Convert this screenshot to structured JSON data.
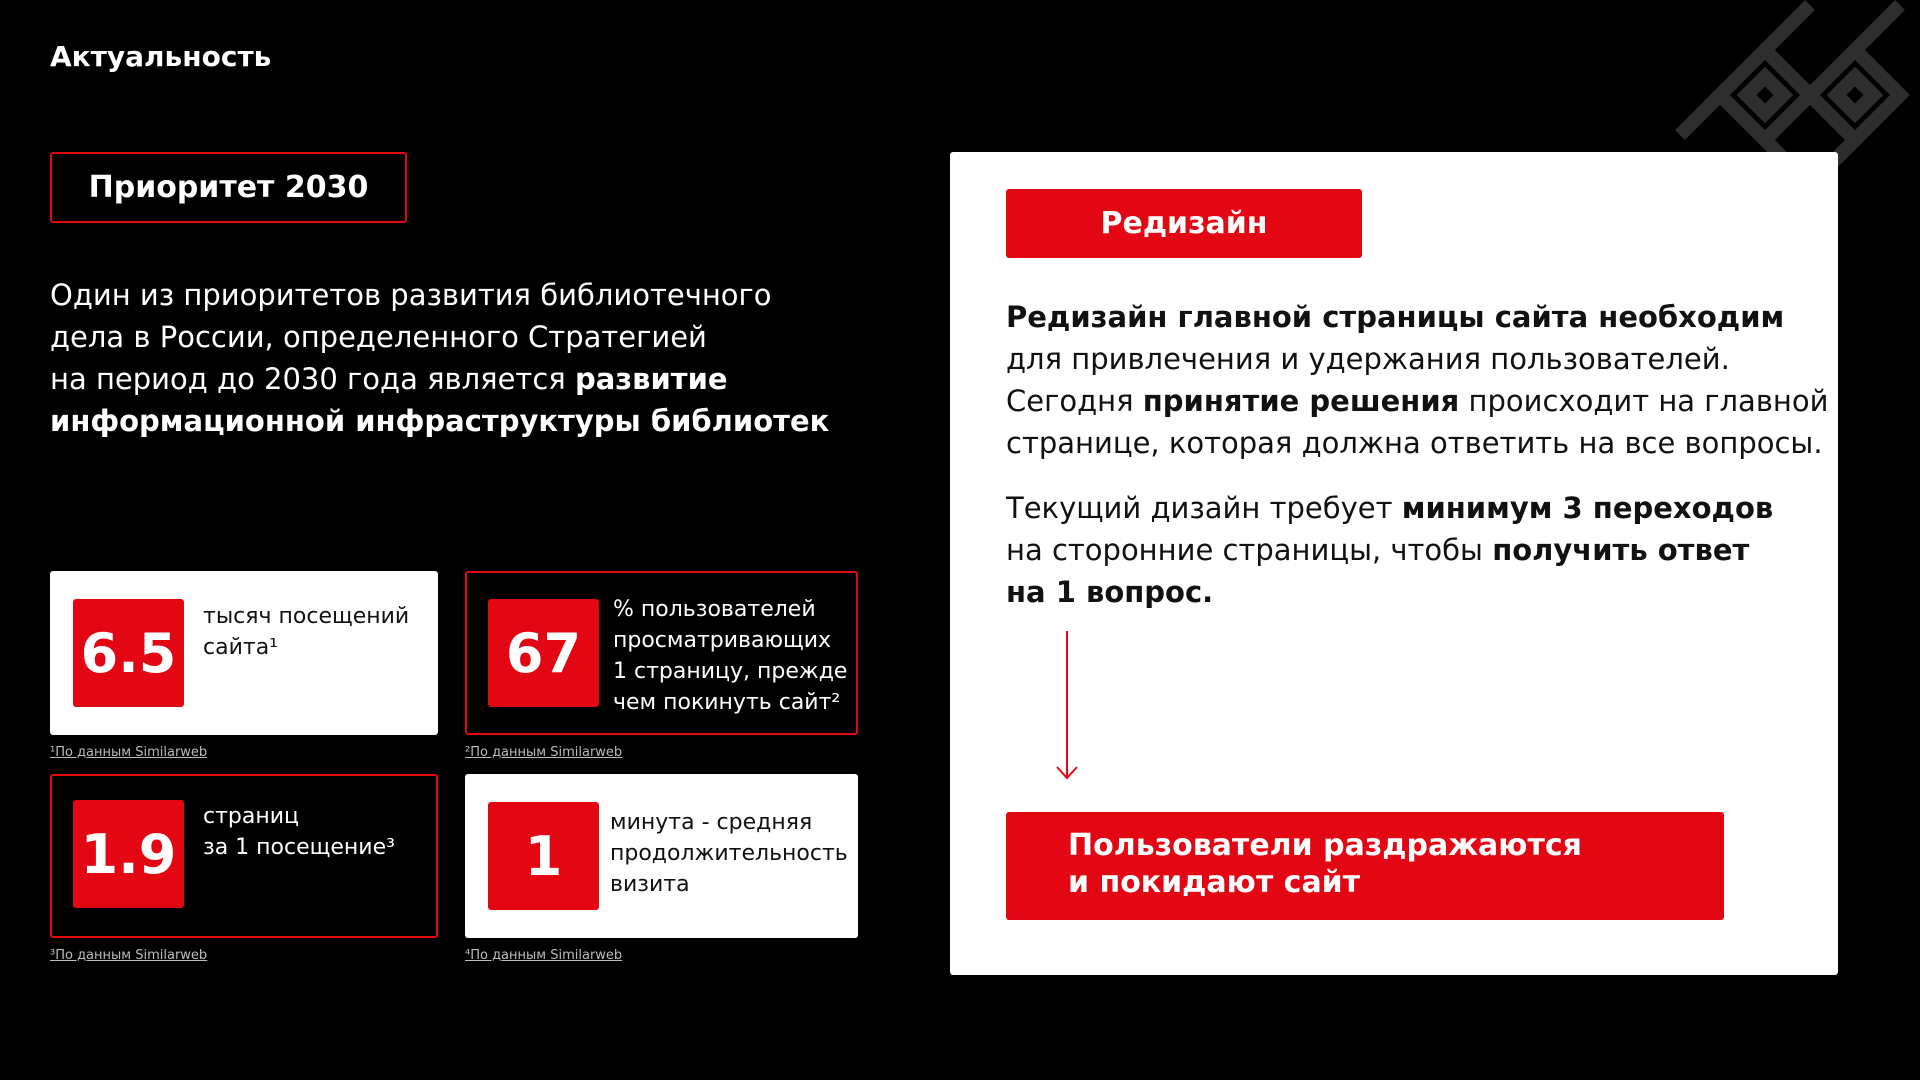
{
  "header": {
    "title": "Актуальность"
  },
  "priority": {
    "label": "Приоритет 2030",
    "lines": [
      [
        {
          "text": "Один из приоритетов развития библиотечного",
          "bold": false
        }
      ],
      [
        {
          "text": "дела в России, определенного Стратегией",
          "bold": false
        }
      ],
      [
        {
          "text": "на период до 2030 года является ",
          "bold": false
        },
        {
          "text": "развитие",
          "bold": true
        }
      ],
      [
        {
          "text": "информационной инфраструктуры библиотек",
          "bold": true
        }
      ]
    ]
  },
  "stats": [
    {
      "value": 6.5,
      "caption": [
        "тысяч посещений",
        "сайта¹"
      ],
      "footnote": "¹По данным Similarweb",
      "style": "light"
    },
    {
      "value": 67,
      "caption": [
        "% пользователей",
        "просматривающих",
        "1 страницу, прежде",
        "чем  покинуть сайт²"
      ],
      "footnote": "²По данным Similarweb",
      "style": "dark"
    },
    {
      "value": 1.9,
      "caption": [
        "страниц",
        "за 1 посещение³"
      ],
      "footnote": "³По данным Similarweb",
      "style": "dark"
    },
    {
      "value": 1,
      "caption": [
        "минута - средняя",
        "продолжительность",
        "визита"
      ],
      "footnote": "⁴По данным Similarweb",
      "style": "light"
    }
  ],
  "panel": {
    "tag": "Редизайн",
    "paragraphs": [
      [
        [
          {
            "text": "Редизайн главной страницы сайта необходим",
            "bold": true
          }
        ],
        [
          {
            "text": "для привлечения и удержания пользователей.",
            "bold": false
          }
        ],
        [
          {
            "text": "Сегодня ",
            "bold": false
          },
          {
            "text": "принятие решения",
            "bold": true
          },
          {
            "text": " происходит на главной",
            "bold": false
          }
        ],
        [
          {
            "text": "странице, которая должна ответить на все вопросы.",
            "bold": false
          }
        ]
      ],
      [
        [
          {
            "text": "Текущий дизайн требует ",
            "bold": false
          },
          {
            "text": "минимум 3 переходов",
            "bold": true
          }
        ],
        [
          {
            "text": "на сторонние страницы, чтобы ",
            "bold": false
          },
          {
            "text": "получить ответ",
            "bold": true
          }
        ],
        [
          {
            "text": "на 1 вопрос.",
            "bold": true
          }
        ]
      ]
    ],
    "callout": [
      "Пользователи раздражаются",
      "и покидают сайт"
    ]
  }
}
